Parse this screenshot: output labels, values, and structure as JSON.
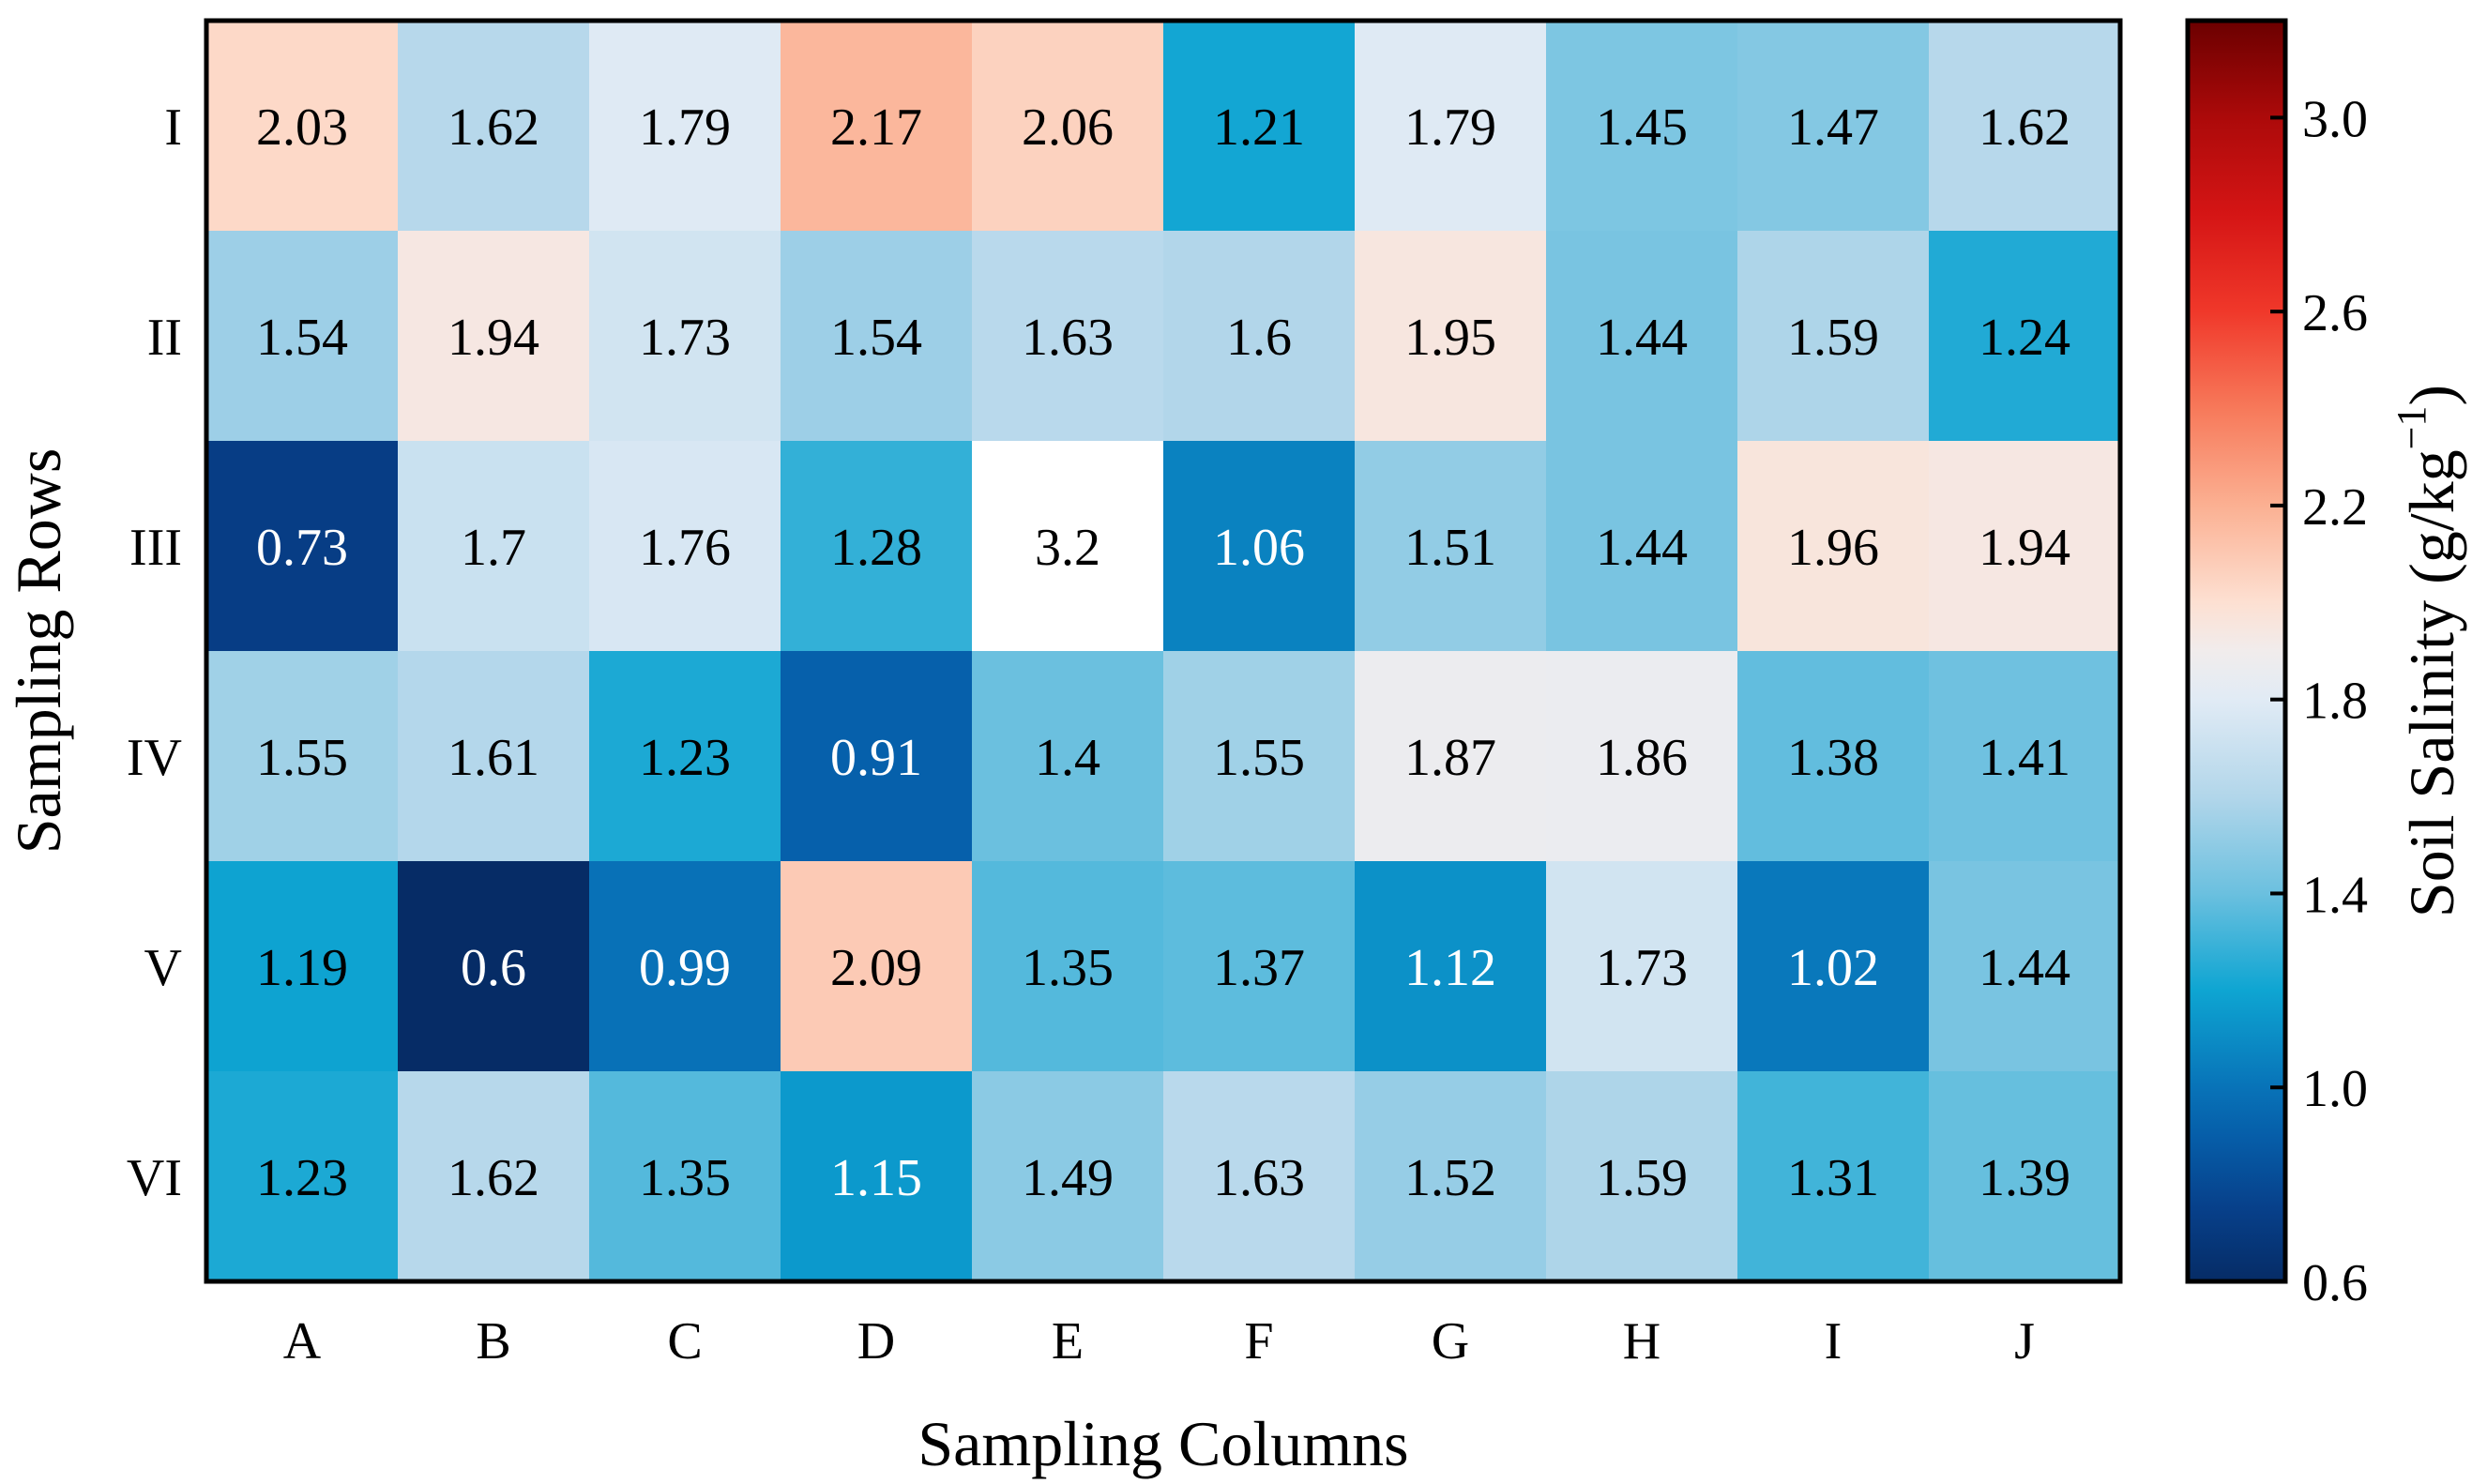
{
  "chart_data": {
    "type": "heatmap",
    "title": "",
    "xlabel": "Sampling Columns",
    "ylabel": "Sampling Rows",
    "x_categories": [
      "A",
      "B",
      "C",
      "D",
      "E",
      "F",
      "G",
      "H",
      "I",
      "J"
    ],
    "y_categories": [
      "I",
      "II",
      "III",
      "IV",
      "V",
      "VI"
    ],
    "values": [
      [
        2.03,
        1.62,
        1.79,
        2.17,
        2.06,
        1.21,
        1.79,
        1.45,
        1.47,
        1.62
      ],
      [
        1.54,
        1.94,
        1.73,
        1.54,
        1.63,
        1.6,
        1.95,
        1.44,
        1.59,
        1.24
      ],
      [
        0.73,
        1.7,
        1.76,
        1.28,
        3.2,
        1.06,
        1.51,
        1.44,
        1.96,
        1.94
      ],
      [
        1.55,
        1.61,
        1.23,
        0.91,
        1.4,
        1.55,
        1.87,
        1.86,
        1.38,
        1.41
      ],
      [
        1.19,
        0.6,
        0.99,
        2.09,
        1.35,
        1.37,
        1.12,
        1.73,
        1.02,
        1.44
      ],
      [
        1.23,
        1.62,
        1.35,
        1.15,
        1.49,
        1.63,
        1.52,
        1.59,
        1.31,
        1.39
      ]
    ],
    "labels": [
      [
        "2.03",
        "1.62",
        "1.79",
        "2.17",
        "2.06",
        "1.21",
        "1.79",
        "1.45",
        "1.47",
        "1.62"
      ],
      [
        "1.54",
        "1.94",
        "1.73",
        "1.54",
        "1.63",
        "1.6",
        "1.95",
        "1.44",
        "1.59",
        "1.24"
      ],
      [
        "0.73",
        "1.7",
        "1.76",
        "1.28",
        "3.2",
        "1.06",
        "1.51",
        "1.44",
        "1.96",
        "1.94"
      ],
      [
        "1.55",
        "1.61",
        "1.23",
        "0.91",
        "1.4",
        "1.55",
        "1.87",
        "1.86",
        "1.38",
        "1.41"
      ],
      [
        "1.19",
        "0.6",
        "0.99",
        "2.09",
        "1.35",
        "1.37",
        "1.12",
        "1.73",
        "1.02",
        "1.44"
      ],
      [
        "1.23",
        "1.62",
        "1.35",
        "1.15",
        "1.49",
        "1.63",
        "1.52",
        "1.59",
        "1.31",
        "1.39"
      ]
    ],
    "colorbar": {
      "label_main": "Soil Salinity (g/kg",
      "label_sup": "−1",
      "label_end": ")",
      "range": [
        0.6,
        3.2
      ],
      "ticks": [
        0.6,
        1.0,
        1.4,
        1.8,
        2.2,
        2.6,
        3.0
      ],
      "tick_labels": [
        "0.6",
        "1.0",
        "1.4",
        "1.8",
        "2.2",
        "2.6",
        "3.0"
      ],
      "colormap": "RdBu_r",
      "stops": [
        {
          "v": 0.6,
          "color": "#062c66"
        },
        {
          "v": 0.75,
          "color": "#07408a"
        },
        {
          "v": 0.9,
          "color": "#065ea9"
        },
        {
          "v": 1.0,
          "color": "#0873b8"
        },
        {
          "v": 1.2,
          "color": "#0ea5d2"
        },
        {
          "v": 1.4,
          "color": "#6bc0df"
        },
        {
          "v": 1.6,
          "color": "#b2d6ea"
        },
        {
          "v": 1.8,
          "color": "#e1ebf5"
        },
        {
          "v": 1.9,
          "color": "#f1ecec"
        },
        {
          "v": 2.0,
          "color": "#fde0d2"
        },
        {
          "v": 2.2,
          "color": "#fbb092"
        },
        {
          "v": 2.4,
          "color": "#f7795a"
        },
        {
          "v": 2.6,
          "color": "#f0382a"
        },
        {
          "v": 2.8,
          "color": "#d51515"
        },
        {
          "v": 3.0,
          "color": "#ac0a0a"
        },
        {
          "v": 3.2,
          "color": "#6b0000"
        }
      ]
    },
    "special_colors": {
      "3.2": "#ffffff"
    },
    "label_color_light": "#ffffff",
    "label_color_dark": "#000000"
  }
}
